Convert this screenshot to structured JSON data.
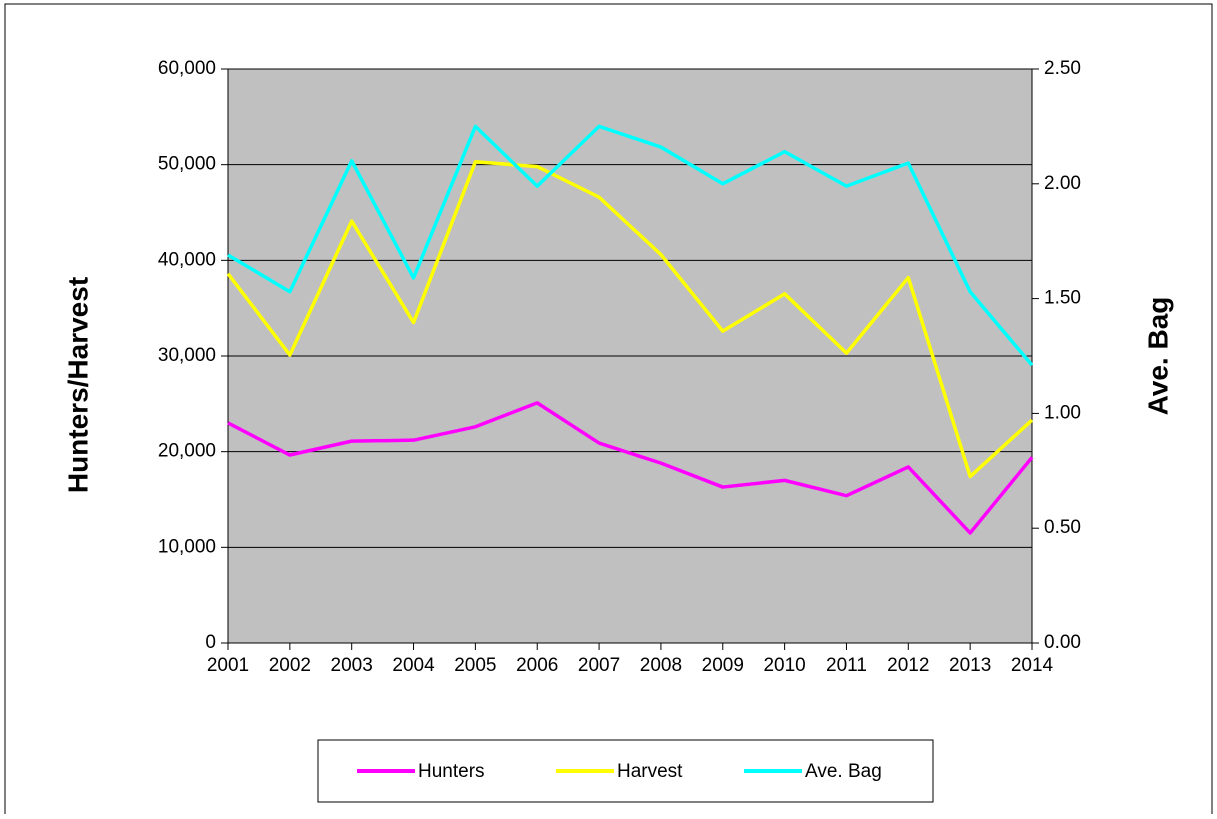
{
  "chart_data": {
    "type": "line",
    "categories": [
      "2001",
      "2002",
      "2003",
      "2004",
      "2005",
      "2006",
      "2007",
      "2008",
      "2009",
      "2010",
      "2011",
      "2012",
      "2013",
      "2014"
    ],
    "series": [
      {
        "name": "Hunters",
        "color": "#ff00ff",
        "values": [
          23000,
          19650,
          21100,
          21200,
          22600,
          25100,
          20900,
          18800,
          16300,
          17000,
          15400,
          18400,
          11500,
          19400
        ]
      },
      {
        "name": "Harvest",
        "color": "#ffff00",
        "values": [
          38600,
          30100,
          44100,
          33500,
          50300,
          49800,
          46600,
          40600,
          32600,
          36500,
          30300,
          38200,
          17400,
          23300
        ]
      },
      {
        "name": "Ave. Bag",
        "color": "#00ffff",
        "axis": "y2",
        "values": [
          1.69,
          1.53,
          2.1,
          1.59,
          2.25,
          1.99,
          2.25,
          2.16,
          2.0,
          2.14,
          1.99,
          2.09,
          1.53,
          1.21
        ]
      }
    ],
    "ylabel": "Hunters/Harvest",
    "y2label": "Ave. Bag",
    "ylim": [
      0,
      60000
    ],
    "yticks": [
      0,
      {
        "value": 10000,
        "label": "10,000"
      },
      {
        "value": 20000,
        "label": "20,000"
      },
      {
        "value": 30000,
        "label": "30,000"
      },
      {
        "value": 40000,
        "label": "40,000"
      },
      {
        "value": 50000,
        "label": "50,000"
      },
      {
        "value": 60000,
        "label": "60,000"
      }
    ],
    "y2lim": [
      0,
      2.5
    ],
    "y2ticks": [
      {
        "value": 0,
        "label": "0.00"
      },
      {
        "value": 0.5,
        "label": "0.50"
      },
      {
        "value": 1,
        "label": "1.00"
      },
      {
        "value": 1.5,
        "label": "1.50"
      },
      {
        "value": 2,
        "label": "2.00"
      },
      {
        "value": 2.5,
        "label": "2.50"
      }
    ],
    "grid": true,
    "legend": "bottom",
    "background": "#c0c0c0"
  }
}
